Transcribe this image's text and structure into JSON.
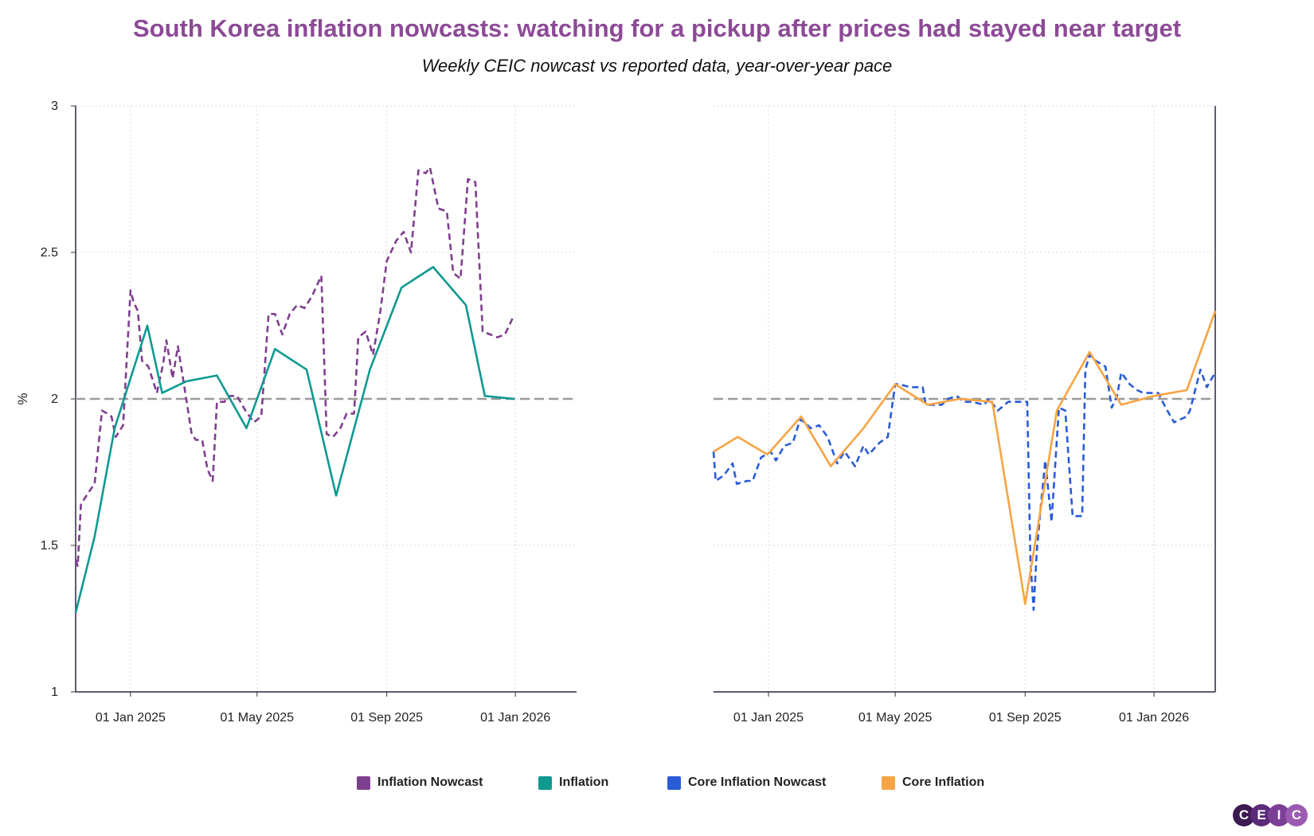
{
  "title": "South Korea inflation nowcasts: watching for a pickup after prices had stayed near target",
  "subtitle": "Weekly CEIC nowcast vs reported data, year-over-year pace",
  "brand": {
    "letters": [
      "C",
      "E",
      "I",
      "C"
    ],
    "colors": [
      "#3d1a52",
      "#5b2a78",
      "#7b3f96",
      "#9b5bb3"
    ]
  },
  "legend": [
    {
      "label": "Inflation Nowcast",
      "color": "#7f3f8f"
    },
    {
      "label": "Inflation",
      "color": "#0f9990"
    },
    {
      "label": "Core Inflation Nowcast",
      "color": "#2a5bd7"
    },
    {
      "label": "Core Inflation",
      "color": "#f7a444"
    }
  ],
  "chart_data": [
    {
      "type": "line",
      "ylabel": "%",
      "ylim": [
        1,
        3
      ],
      "yticks": [
        1,
        1.5,
        2,
        2.5,
        3
      ],
      "x_range": [
        "2024-11-10",
        "2026-02-28"
      ],
      "x_tick_labels": [
        {
          "date": "2025-01-01",
          "label": "01 Jan 2025"
        },
        {
          "date": "2025-05-01",
          "label": "01 May 2025"
        },
        {
          "date": "2025-09-01",
          "label": "01 Sep 2025"
        },
        {
          "date": "2026-01-01",
          "label": "01 Jan 2026"
        }
      ],
      "reference_line": 2,
      "grid": true,
      "series": [
        {
          "name": "Inflation Nowcast",
          "color": "#7f3f8f",
          "style": "dashed",
          "points": [
            [
              "2024-11-10",
              1.45
            ],
            [
              "2024-11-12",
              1.43
            ],
            [
              "2024-11-15",
              1.64
            ],
            [
              "2024-11-22",
              1.68
            ],
            [
              "2024-11-28",
              1.71
            ],
            [
              "2024-12-05",
              1.96
            ],
            [
              "2024-12-10",
              1.95
            ],
            [
              "2024-12-14",
              1.94
            ],
            [
              "2024-12-18",
              1.87
            ],
            [
              "2024-12-25",
              1.91
            ],
            [
              "2025-01-01",
              2.37
            ],
            [
              "2025-01-04",
              2.33
            ],
            [
              "2025-01-08",
              2.3
            ],
            [
              "2025-01-12",
              2.13
            ],
            [
              "2025-01-18",
              2.11
            ],
            [
              "2025-01-26",
              2.02
            ],
            [
              "2025-02-01",
              2.12
            ],
            [
              "2025-02-04",
              2.2
            ],
            [
              "2025-02-10",
              2.07
            ],
            [
              "2025-02-15",
              2.18
            ],
            [
              "2025-02-22",
              2.02
            ],
            [
              "2025-02-28",
              1.88
            ],
            [
              "2025-03-04",
              1.86
            ],
            [
              "2025-03-10",
              1.86
            ],
            [
              "2025-03-15",
              1.76
            ],
            [
              "2025-03-20",
              1.72
            ],
            [
              "2025-03-24",
              1.99
            ],
            [
              "2025-03-31",
              1.99
            ],
            [
              "2025-04-05",
              2.01
            ],
            [
              "2025-04-12",
              2.01
            ],
            [
              "2025-04-20",
              1.96
            ],
            [
              "2025-04-28",
              1.92
            ],
            [
              "2025-05-05",
              1.94
            ],
            [
              "2025-05-12",
              2.29
            ],
            [
              "2025-05-18",
              2.29
            ],
            [
              "2025-05-25",
              2.22
            ],
            [
              "2025-06-01",
              2.29
            ],
            [
              "2025-06-08",
              2.32
            ],
            [
              "2025-06-15",
              2.31
            ],
            [
              "2025-06-22",
              2.35
            ],
            [
              "2025-07-01",
              2.42
            ],
            [
              "2025-07-06",
              1.88
            ],
            [
              "2025-07-12",
              1.87
            ],
            [
              "2025-07-19",
              1.9
            ],
            [
              "2025-07-25",
              1.95
            ],
            [
              "2025-08-01",
              1.95
            ],
            [
              "2025-08-05",
              2.21
            ],
            [
              "2025-08-12",
              2.23
            ],
            [
              "2025-08-19",
              2.15
            ],
            [
              "2025-08-26",
              2.3
            ],
            [
              "2025-09-01",
              2.47
            ],
            [
              "2025-09-10",
              2.54
            ],
            [
              "2025-09-17",
              2.57
            ],
            [
              "2025-09-24",
              2.5
            ],
            [
              "2025-10-01",
              2.78
            ],
            [
              "2025-10-08",
              2.77
            ],
            [
              "2025-10-12",
              2.79
            ],
            [
              "2025-10-20",
              2.65
            ],
            [
              "2025-10-28",
              2.64
            ],
            [
              "2025-11-03",
              2.43
            ],
            [
              "2025-11-10",
              2.41
            ],
            [
              "2025-11-17",
              2.75
            ],
            [
              "2025-11-24",
              2.74
            ],
            [
              "2025-12-01",
              2.23
            ],
            [
              "2025-12-08",
              2.22
            ],
            [
              "2025-12-15",
              2.21
            ],
            [
              "2025-12-22",
              2.22
            ],
            [
              "2025-12-30",
              2.28
            ]
          ]
        },
        {
          "name": "Inflation",
          "color": "#0f9990",
          "style": "solid",
          "points": [
            [
              "2024-11-10",
              1.27
            ],
            [
              "2024-11-28",
              1.53
            ],
            [
              "2024-12-17",
              1.9
            ],
            [
              "2025-01-17",
              2.25
            ],
            [
              "2025-01-31",
              2.02
            ],
            [
              "2025-02-23",
              2.06
            ],
            [
              "2025-03-24",
              2.08
            ],
            [
              "2025-04-21",
              1.9
            ],
            [
              "2025-05-18",
              2.17
            ],
            [
              "2025-06-17",
              2.1
            ],
            [
              "2025-07-15",
              1.67
            ],
            [
              "2025-08-16",
              2.1
            ],
            [
              "2025-09-15",
              2.38
            ],
            [
              "2025-10-15",
              2.45
            ],
            [
              "2025-11-15",
              2.32
            ],
            [
              "2025-12-03",
              2.01
            ],
            [
              "2025-12-31",
              2.0
            ]
          ]
        }
      ]
    },
    {
      "type": "line",
      "ylim": [
        1,
        3
      ],
      "yticks": [
        1,
        1.5,
        2,
        2.5,
        3
      ],
      "x_range": [
        "2024-11-10",
        "2026-02-28"
      ],
      "x_tick_labels": [
        {
          "date": "2025-01-01",
          "label": "01 Jan 2025"
        },
        {
          "date": "2025-05-01",
          "label": "01 May 2025"
        },
        {
          "date": "2025-09-01",
          "label": "01 Sep 2025"
        },
        {
          "date": "2026-01-01",
          "label": "01 Jan 2026"
        }
      ],
      "reference_line": 2,
      "grid": true,
      "series": [
        {
          "name": "Core Inflation Nowcast",
          "color": "#2a5bd7",
          "style": "dashed",
          "points": [
            [
              "2024-11-10",
              1.82
            ],
            [
              "2024-11-12",
              1.72
            ],
            [
              "2024-11-20",
              1.74
            ],
            [
              "2024-11-28",
              1.78
            ],
            [
              "2024-12-02",
              1.71
            ],
            [
              "2024-12-12",
              1.72
            ],
            [
              "2024-12-17",
              1.72
            ],
            [
              "2024-12-25",
              1.8
            ],
            [
              "2025-01-03",
              1.82
            ],
            [
              "2025-01-08",
              1.79
            ],
            [
              "2025-01-16",
              1.84
            ],
            [
              "2025-01-24",
              1.85
            ],
            [
              "2025-01-31",
              1.93
            ],
            [
              "2025-02-04",
              1.92
            ],
            [
              "2025-02-10",
              1.9
            ],
            [
              "2025-02-18",
              1.91
            ],
            [
              "2025-02-26",
              1.87
            ],
            [
              "2025-03-07",
              1.78
            ],
            [
              "2025-03-14",
              1.82
            ],
            [
              "2025-03-24",
              1.77
            ],
            [
              "2025-04-01",
              1.84
            ],
            [
              "2025-04-06",
              1.81
            ],
            [
              "2025-04-16",
              1.85
            ],
            [
              "2025-04-24",
              1.87
            ],
            [
              "2025-05-01",
              2.05
            ],
            [
              "2025-05-05",
              2.05
            ],
            [
              "2025-05-15",
              2.04
            ],
            [
              "2025-05-27",
              2.04
            ],
            [
              "2025-05-30",
              1.98
            ],
            [
              "2025-06-14",
              1.98
            ],
            [
              "2025-06-20",
              2.0
            ],
            [
              "2025-06-28",
              2.01
            ],
            [
              "2025-07-05",
              1.99
            ],
            [
              "2025-07-13",
              1.99
            ],
            [
              "2025-07-24",
              1.98
            ],
            [
              "2025-07-29",
              2.0
            ],
            [
              "2025-08-06",
              1.96
            ],
            [
              "2025-08-16",
              1.99
            ],
            [
              "2025-08-26",
              1.99
            ],
            [
              "2025-09-03",
              1.99
            ],
            [
              "2025-09-06",
              1.45
            ],
            [
              "2025-09-09",
              1.28
            ],
            [
              "2025-09-12",
              1.48
            ],
            [
              "2025-09-16",
              1.64
            ],
            [
              "2025-09-20",
              1.79
            ],
            [
              "2025-09-26",
              1.58
            ],
            [
              "2025-10-03",
              1.97
            ],
            [
              "2025-10-09",
              1.96
            ],
            [
              "2025-10-16",
              1.6
            ],
            [
              "2025-10-25",
              1.6
            ],
            [
              "2025-10-28",
              2.1
            ],
            [
              "2025-11-01",
              2.15
            ],
            [
              "2025-11-07",
              2.13
            ],
            [
              "2025-11-16",
              2.11
            ],
            [
              "2025-11-22",
              1.97
            ],
            [
              "2025-11-27",
              2.01
            ],
            [
              "2025-12-01",
              2.09
            ],
            [
              "2025-12-09",
              2.05
            ],
            [
              "2025-12-16",
              2.03
            ],
            [
              "2025-12-22",
              2.02
            ],
            [
              "2026-01-05",
              2.02
            ],
            [
              "2026-01-12",
              1.97
            ],
            [
              "2026-01-20",
              1.92
            ],
            [
              "2026-02-01",
              1.94
            ],
            [
              "2026-02-04",
              1.96
            ],
            [
              "2026-02-14",
              2.1
            ],
            [
              "2026-02-20",
              2.04
            ],
            [
              "2026-02-28",
              2.09
            ]
          ]
        },
        {
          "name": "Core Inflation",
          "color": "#f7a444",
          "style": "solid",
          "points": [
            [
              "2024-11-10",
              1.82
            ],
            [
              "2024-12-03",
              1.87
            ],
            [
              "2024-12-31",
              1.81
            ],
            [
              "2025-02-01",
              1.94
            ],
            [
              "2025-03-01",
              1.77
            ],
            [
              "2025-04-01",
              1.9
            ],
            [
              "2025-05-01",
              2.05
            ],
            [
              "2025-06-01",
              1.98
            ],
            [
              "2025-07-01",
              2.0
            ],
            [
              "2025-08-01",
              1.99
            ],
            [
              "2025-09-01",
              1.3
            ],
            [
              "2025-10-01",
              1.96
            ],
            [
              "2025-11-01",
              2.16
            ],
            [
              "2025-12-01",
              1.98
            ],
            [
              "2026-01-01",
              2.01
            ],
            [
              "2026-02-01",
              2.03
            ],
            [
              "2026-02-28",
              2.3
            ]
          ]
        }
      ]
    }
  ]
}
